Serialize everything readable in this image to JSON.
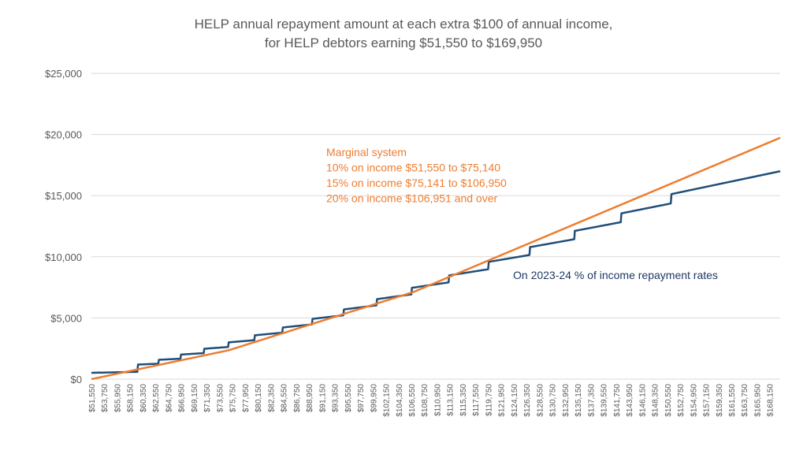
{
  "chart_data": {
    "type": "line",
    "title": "HELP annual repayment amount at each extra $100 of annual income,",
    "subtitle": "for HELP debtors earning $51,550 to $169,950",
    "xlabel": "",
    "ylabel": "",
    "x_range": [
      51550,
      169950
    ],
    "x_step": 100,
    "ylim": [
      0,
      25000
    ],
    "grid": true,
    "y_ticks": [
      0,
      5000,
      10000,
      15000,
      20000,
      25000
    ],
    "y_tick_labels": [
      "$0",
      "$5,000",
      "$10,000",
      "$15,000",
      "$20,000",
      "$25,000"
    ],
    "x_tick_labels": [
      "$51,550",
      "$53,750",
      "$55,950",
      "$58,150",
      "$60,350",
      "$62,550",
      "$64,750",
      "$66,950",
      "$69,150",
      "$71,350",
      "$73,550",
      "$75,750",
      "$77,950",
      "$80,150",
      "$82,350",
      "$84,550",
      "$86,750",
      "$88,950",
      "$91,150",
      "$93,350",
      "$95,550",
      "$97,750",
      "$99,950",
      "$102,150",
      "$104,350",
      "$106,550",
      "$108,750",
      "$110,950",
      "$113,150",
      "$115,350",
      "$117,550",
      "$119,750",
      "$121,950",
      "$124,150",
      "$126,350",
      "$128,550",
      "$130,750",
      "$132,950",
      "$135,150",
      "$137,350",
      "$139,550",
      "$141,750",
      "$143,950",
      "$146,150",
      "$148,350",
      "$150,550",
      "$152,750",
      "$154,950",
      "$157,150",
      "$159,350",
      "$161,550",
      "$163,750",
      "$165,950",
      "$168,150"
    ],
    "series": [
      {
        "name": "On 2023-24 % of income repayment rates",
        "color": "#1F4E79",
        "kind": "percent_of_income",
        "thresholds": [
          {
            "from": 51550,
            "rate": 0.01
          },
          {
            "from": 59519,
            "rate": 0.02
          },
          {
            "from": 63090,
            "rate": 0.025
          },
          {
            "from": 66876,
            "rate": 0.03
          },
          {
            "from": 70889,
            "rate": 0.035
          },
          {
            "from": 75141,
            "rate": 0.04
          },
          {
            "from": 79649,
            "rate": 0.045
          },
          {
            "from": 84429,
            "rate": 0.05
          },
          {
            "from": 89494,
            "rate": 0.055
          },
          {
            "from": 94865,
            "rate": 0.06
          },
          {
            "from": 100557,
            "rate": 0.065
          },
          {
            "from": 106590,
            "rate": 0.07
          },
          {
            "from": 112985,
            "rate": 0.075
          },
          {
            "from": 119764,
            "rate": 0.08
          },
          {
            "from": 126950,
            "rate": 0.085
          },
          {
            "from": 134568,
            "rate": 0.09
          },
          {
            "from": 142642,
            "rate": 0.095
          },
          {
            "from": 151200,
            "rate": 0.1
          }
        ]
      },
      {
        "name": "Marginal system",
        "color": "#ED7D31",
        "kind": "marginal",
        "brackets": [
          {
            "from": 51550,
            "to": 75140,
            "rate": 0.1
          },
          {
            "from": 75141,
            "to": 106950,
            "rate": 0.15
          },
          {
            "from": 106951,
            "to": null,
            "rate": 0.2
          }
        ]
      }
    ],
    "annotations": {
      "marginal": [
        "Marginal system",
        "10% on income $51,550 to $75,140",
        "15% on income $75,141 to $106,950",
        "20% on income $106,951 and over"
      ],
      "current": "On 2023-24 % of income repayment rates"
    },
    "colors": {
      "grid": "#D9D9D9",
      "text": "#595959",
      "marginal_text": "#ED7D31",
      "current_text": "#1F3864"
    }
  }
}
